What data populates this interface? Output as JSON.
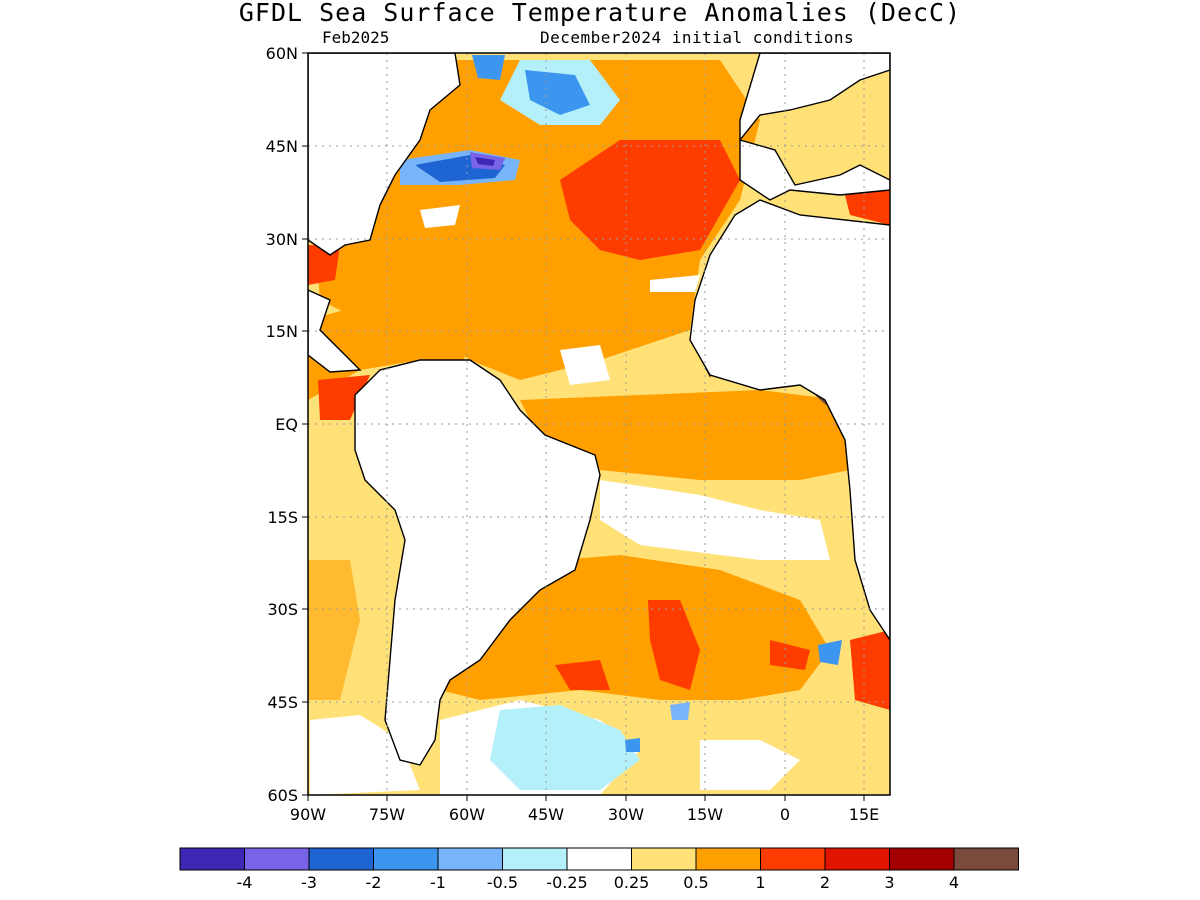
{
  "title": "GFDL Sea Surface Temperature Anomalies (DecC)",
  "valid_month": "Feb2025",
  "initial_conditions": "December2024 initial conditions",
  "map": {
    "lon_range": [
      -90,
      20
    ],
    "lat_range": [
      -60,
      60
    ],
    "lat_labels": [
      "60N",
      "45N",
      "30N",
      "15N",
      "EQ",
      "15S",
      "30S",
      "45S",
      "60S"
    ],
    "lon_labels": [
      "90W",
      "75W",
      "60W",
      "45W",
      "30W",
      "15W",
      "0",
      "15E"
    ],
    "grid": "dotted"
  },
  "colorbar": {
    "labels": [
      "-4",
      "-3",
      "-2",
      "-1",
      "-0.5",
      "-0.25",
      "0.25",
      "0.5",
      "1",
      "2",
      "3",
      "4"
    ],
    "colors": [
      "#3c28b4",
      "#7864e6",
      "#1e64d2",
      "#3c96f0",
      "#78b4fa",
      "#b4f0fa",
      "#ffffff",
      "#ffe178",
      "#ffa000",
      "#ff3c00",
      "#e11400",
      "#a50000",
      "#7a4a3c"
    ]
  },
  "fields": {
    "land_fill": "#ffffff",
    "coastline_color": "#000000"
  }
}
